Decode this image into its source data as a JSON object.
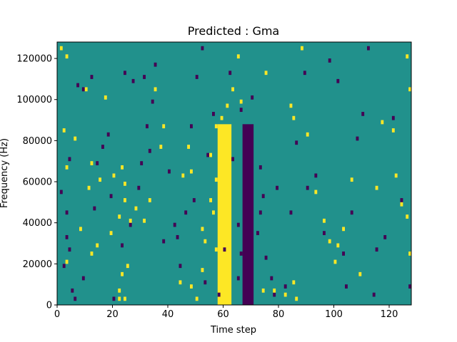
{
  "chart_data": {
    "type": "heatmap",
    "title": "Predicted : Gma",
    "xlabel": "Time step",
    "ylabel": "Frequency (Hz)",
    "xlim": [
      0,
      128
    ],
    "ylim": [
      0,
      128000
    ],
    "xticks": [
      0,
      20,
      40,
      60,
      80,
      100,
      120
    ],
    "yticks": [
      0,
      20000,
      40000,
      60000,
      80000,
      100000,
      120000
    ],
    "grid": false,
    "legend": "none",
    "n_time_steps": 128,
    "n_frequency_bins": 64,
    "background_level": "mid",
    "colors": {
      "low": "#440154",
      "mid": "#21918c",
      "high": "#fde725"
    },
    "dominant_band": {
      "level": "high",
      "x_start": 58,
      "x_end": 63,
      "y_start": 0,
      "y_end": 88000
    },
    "dark_band": {
      "level": "low",
      "x_start": 67,
      "x_end": 71,
      "y_start": 0,
      "y_end": 88000
    },
    "cells_high": [
      [
        1,
        124000
      ],
      [
        3,
        120000
      ],
      [
        2,
        84000
      ],
      [
        6,
        80000
      ],
      [
        3,
        66000
      ],
      [
        12,
        68000
      ],
      [
        15,
        60000
      ],
      [
        20,
        62000
      ],
      [
        23,
        66000
      ],
      [
        24,
        58000
      ],
      [
        24,
        50000
      ],
      [
        22,
        42000
      ],
      [
        28,
        46000
      ],
      [
        26,
        40000
      ],
      [
        31,
        40000
      ],
      [
        33,
        50000
      ],
      [
        19,
        34000
      ],
      [
        14,
        28000
      ],
      [
        12,
        24000
      ],
      [
        25,
        18000
      ],
      [
        23,
        14000
      ],
      [
        22,
        6000
      ],
      [
        22,
        2000
      ],
      [
        24,
        2000
      ],
      [
        44,
        10000
      ],
      [
        48,
        8000
      ],
      [
        50,
        2000
      ],
      [
        52,
        16000
      ],
      [
        53,
        30000
      ],
      [
        55,
        50000
      ],
      [
        57,
        60000
      ],
      [
        55,
        72000
      ],
      [
        57,
        86000
      ],
      [
        59,
        90000
      ],
      [
        61,
        96000
      ],
      [
        63,
        104000
      ],
      [
        65,
        120000
      ],
      [
        66,
        98000
      ],
      [
        75,
        112000
      ],
      [
        84,
        96000
      ],
      [
        85,
        90000
      ],
      [
        88,
        124000
      ],
      [
        90,
        82000
      ],
      [
        93,
        54000
      ],
      [
        96,
        40000
      ],
      [
        98,
        30000
      ],
      [
        100,
        20000
      ],
      [
        101,
        28000
      ],
      [
        103,
        36000
      ],
      [
        106,
        60000
      ],
      [
        115,
        56000
      ],
      [
        117,
        88000
      ],
      [
        121,
        84000
      ],
      [
        122,
        62000
      ],
      [
        124,
        48000
      ],
      [
        126,
        42000
      ],
      [
        128,
        24000
      ],
      [
        127,
        104000
      ],
      [
        126,
        120000
      ],
      [
        109,
        14000
      ],
      [
        74,
        6000
      ],
      [
        78,
        6000
      ],
      [
        82,
        4000
      ],
      [
        85,
        10000
      ],
      [
        86,
        2000
      ],
      [
        48,
        64000
      ],
      [
        47,
        76000
      ],
      [
        45,
        62000
      ],
      [
        52,
        36000
      ],
      [
        60,
        80000
      ],
      [
        56,
        44000
      ],
      [
        57,
        26000
      ],
      [
        61,
        16000
      ],
      [
        8,
        36000
      ],
      [
        3,
        20000
      ],
      [
        11,
        56000
      ],
      [
        17,
        100000
      ],
      [
        10,
        104000
      ],
      [
        35,
        104000
      ],
      [
        37,
        76000
      ],
      [
        38,
        86000
      ]
    ],
    "cells_low": [
      [
        3,
        44000
      ],
      [
        4,
        26000
      ],
      [
        5,
        6000
      ],
      [
        6,
        2000
      ],
      [
        2,
        18000
      ],
      [
        1,
        54000
      ],
      [
        4,
        70000
      ],
      [
        7,
        106000
      ],
      [
        9,
        104000
      ],
      [
        12,
        110000
      ],
      [
        16,
        76000
      ],
      [
        14,
        68000
      ],
      [
        19,
        52000
      ],
      [
        20,
        2000
      ],
      [
        23,
        28000
      ],
      [
        26,
        38000
      ],
      [
        29,
        56000
      ],
      [
        30,
        68000
      ],
      [
        33,
        74000
      ],
      [
        34,
        98000
      ],
      [
        31,
        110000
      ],
      [
        32,
        86000
      ],
      [
        27,
        108000
      ],
      [
        35,
        116000
      ],
      [
        38,
        30000
      ],
      [
        40,
        64000
      ],
      [
        42,
        38000
      ],
      [
        44,
        18000
      ],
      [
        46,
        44000
      ],
      [
        48,
        86000
      ],
      [
        50,
        110000
      ],
      [
        52,
        124000
      ],
      [
        54,
        72000
      ],
      [
        56,
        92000
      ],
      [
        58,
        4000
      ],
      [
        65,
        12000
      ],
      [
        66,
        24000
      ],
      [
        72,
        34000
      ],
      [
        73,
        44000
      ],
      [
        74,
        52000
      ],
      [
        73,
        66000
      ],
      [
        75,
        22000
      ],
      [
        77,
        12000
      ],
      [
        78,
        4000
      ],
      [
        79,
        56000
      ],
      [
        82,
        8000
      ],
      [
        84,
        44000
      ],
      [
        86,
        78000
      ],
      [
        89,
        112000
      ],
      [
        90,
        56000
      ],
      [
        93,
        62000
      ],
      [
        96,
        34000
      ],
      [
        98,
        118000
      ],
      [
        101,
        108000
      ],
      [
        103,
        24000
      ],
      [
        104,
        8000
      ],
      [
        106,
        44000
      ],
      [
        108,
        80000
      ],
      [
        110,
        92000
      ],
      [
        112,
        124000
      ],
      [
        114,
        4000
      ],
      [
        115,
        26000
      ],
      [
        118,
        32000
      ],
      [
        121,
        90000
      ],
      [
        124,
        50000
      ],
      [
        127,
        8000
      ],
      [
        60,
        26000
      ],
      [
        63,
        70000
      ],
      [
        65,
        38000
      ],
      [
        70,
        100000
      ],
      [
        43,
        32000
      ],
      [
        49,
        50000
      ],
      [
        53,
        10000
      ],
      [
        62,
        112000
      ],
      [
        66,
        94000
      ],
      [
        24,
        112000
      ],
      [
        18,
        82000
      ],
      [
        9,
        12000
      ],
      [
        3,
        32000
      ],
      [
        13,
        46000
      ]
    ]
  }
}
